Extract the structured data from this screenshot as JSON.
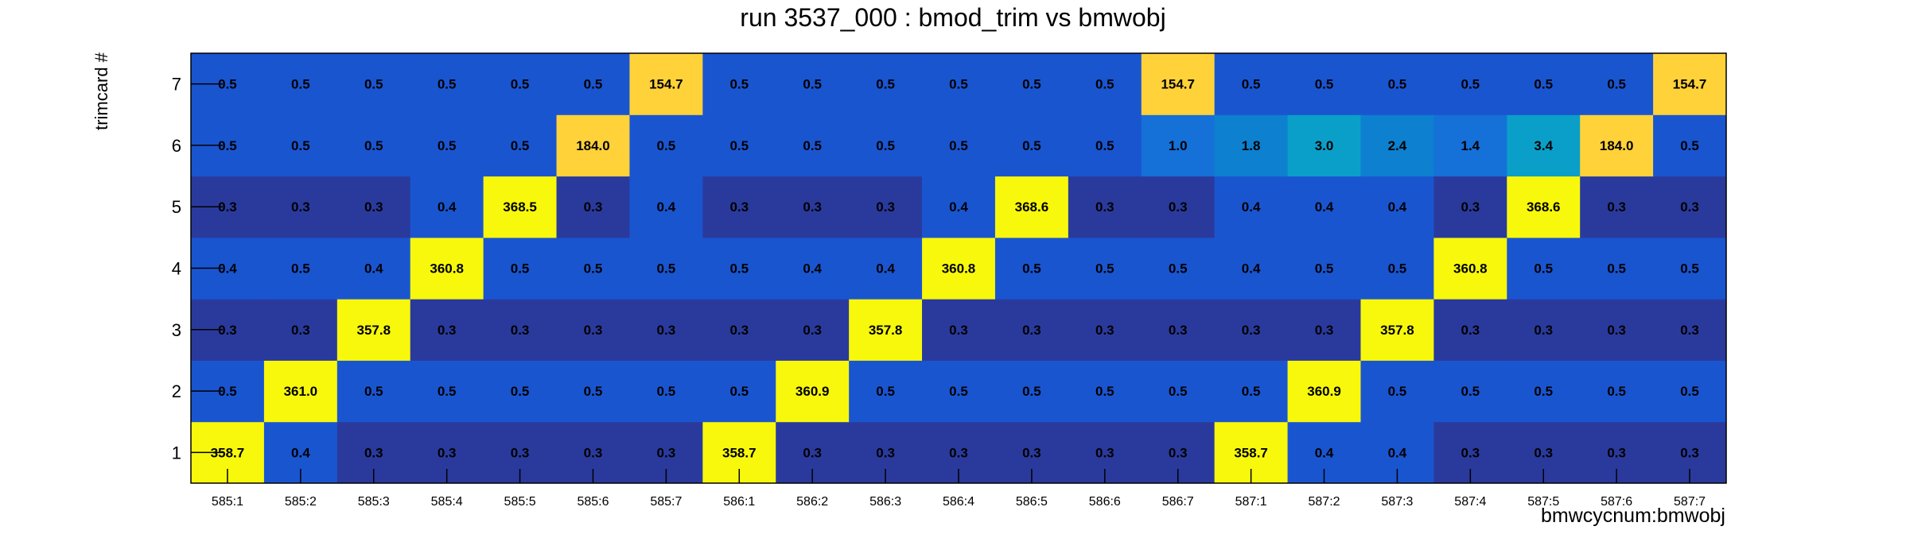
{
  "chart_data": {
    "type": "heatmap",
    "title": "run 3537_000 : bmod_trim vs bmwobj",
    "xlabel": "bmwcycnum:bmwobj",
    "ylabel": "trimcard #",
    "x_categories": [
      "585:1",
      "585:2",
      "585:3",
      "585:4",
      "585:5",
      "585:6",
      "585:7",
      "586:1",
      "586:2",
      "586:3",
      "586:4",
      "586:5",
      "586:6",
      "586:7",
      "587:1",
      "587:2",
      "587:3",
      "587:4",
      "587:5",
      "587:6",
      "587:7"
    ],
    "y_categories": [
      "1",
      "2",
      "3",
      "4",
      "5",
      "6",
      "7"
    ],
    "values_by_row": {
      "7": [
        0.5,
        0.5,
        0.5,
        0.5,
        0.5,
        0.5,
        154.7,
        0.5,
        0.5,
        0.5,
        0.5,
        0.5,
        0.5,
        154.7,
        0.5,
        0.5,
        0.5,
        0.5,
        0.5,
        0.5,
        154.7
      ],
      "6": [
        0.5,
        0.5,
        0.5,
        0.5,
        0.5,
        184.0,
        0.5,
        0.5,
        0.5,
        0.5,
        0.5,
        0.5,
        0.5,
        1.0,
        1.8,
        3.0,
        2.4,
        1.4,
        3.4,
        184.0,
        0.5
      ],
      "5": [
        0.3,
        0.3,
        0.3,
        0.4,
        368.5,
        0.3,
        0.4,
        0.3,
        0.3,
        0.3,
        0.4,
        368.6,
        0.3,
        0.3,
        0.4,
        0.4,
        0.4,
        0.3,
        368.6,
        0.3,
        0.3
      ],
      "4": [
        0.4,
        0.5,
        0.4,
        360.8,
        0.5,
        0.5,
        0.5,
        0.5,
        0.4,
        0.4,
        360.8,
        0.5,
        0.5,
        0.5,
        0.4,
        0.5,
        0.5,
        360.8,
        0.5,
        0.5,
        0.5
      ],
      "3": [
        0.3,
        0.3,
        357.8,
        0.3,
        0.3,
        0.3,
        0.3,
        0.3,
        0.3,
        357.8,
        0.3,
        0.3,
        0.3,
        0.3,
        0.3,
        0.3,
        357.8,
        0.3,
        0.3,
        0.3,
        0.3
      ],
      "2": [
        0.5,
        361.0,
        0.5,
        0.5,
        0.5,
        0.5,
        0.5,
        0.5,
        360.9,
        0.5,
        0.5,
        0.5,
        0.5,
        0.5,
        0.5,
        360.9,
        0.5,
        0.5,
        0.5,
        0.5,
        0.5
      ],
      "1": [
        358.7,
        0.4,
        0.3,
        0.3,
        0.3,
        0.3,
        0.3,
        358.7,
        0.3,
        0.3,
        0.3,
        0.3,
        0.3,
        0.3,
        358.7,
        0.4,
        0.4,
        0.3,
        0.3,
        0.3,
        0.3
      ]
    },
    "colors": {
      "low_dark": "#2a3a9c",
      "low": "#1a55d0",
      "mid": "#0a9fc8",
      "high": "#ffd23a",
      "max": "#f8f80c"
    },
    "grid": false,
    "legend": "none"
  }
}
